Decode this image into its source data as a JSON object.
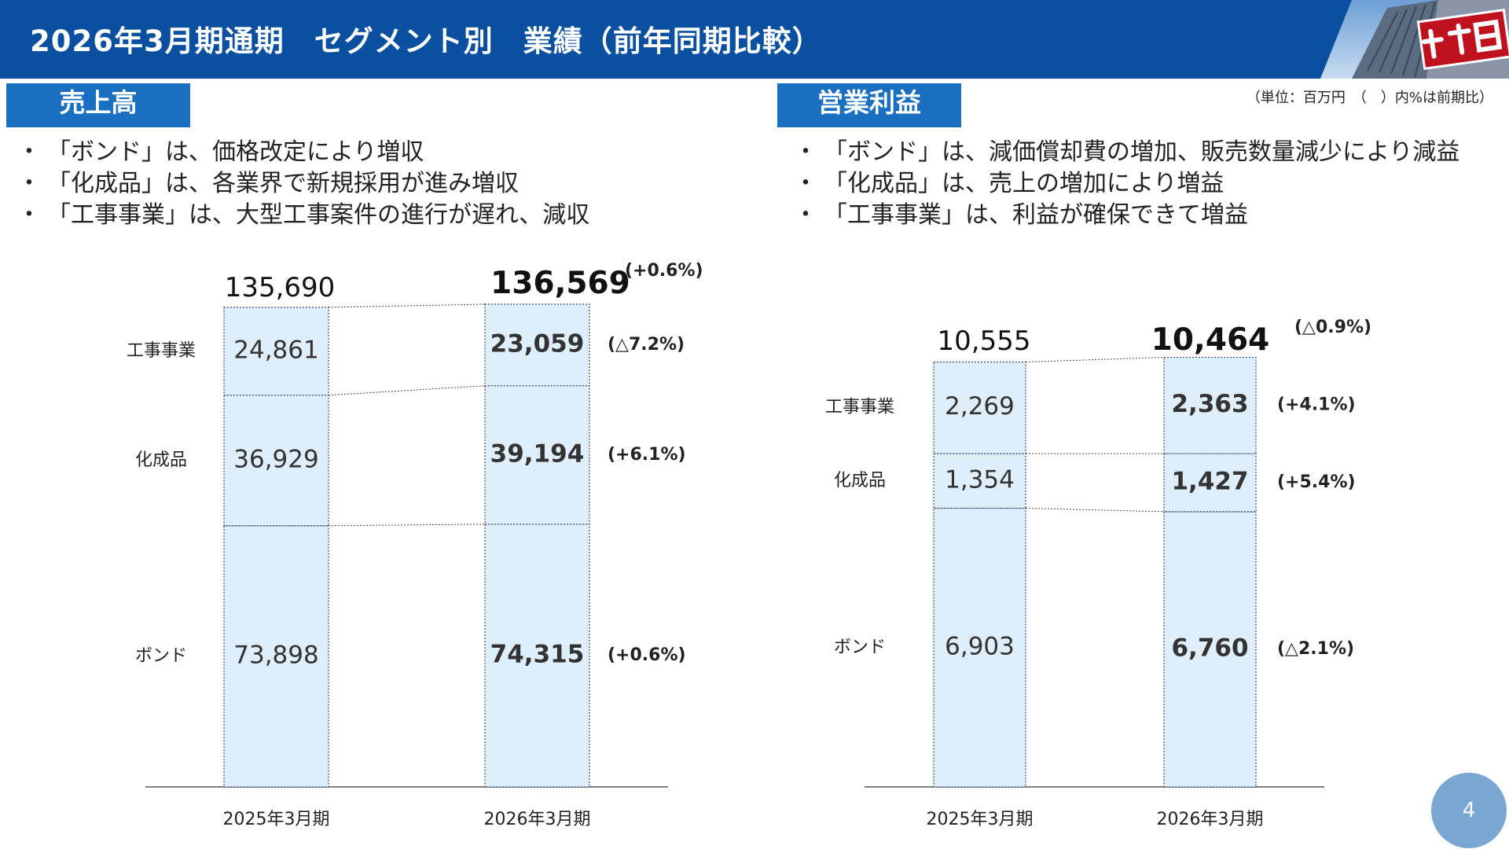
{
  "header": {
    "title": "2026年3月期通期　セグメント別　業績（前年同期比較）"
  },
  "sections": {
    "sales": {
      "label": "売上高",
      "bullets": [
        "「ボンド」は、価格改定により増収",
        "「化成品」は、各業界で新規採用が進み増収",
        "「工事事業」は、大型工事案件の進行が遅れ、減収"
      ]
    },
    "profit": {
      "label": "営業利益",
      "bullets": [
        "「ボンド」は、減価償却費の増加、販売数量減少により減益",
        "「化成品」は、売上の増加により増益",
        "「工事事業」は、利益が確保できて増益"
      ]
    }
  },
  "unit_note": "（単位：百万円　（　）内%は前期比）",
  "page_number": "4",
  "colors": {
    "header": "#0a4fa0",
    "tag": "#1a6fc0",
    "bar_fill": "#deeefa",
    "bar_stroke": "#3a4a66",
    "page_circle": "#7aa6d4"
  },
  "chart_data": [
    {
      "type": "bar",
      "stacked": true,
      "title": "売上高",
      "categories": [
        "2025年3月期",
        "2026年3月期"
      ],
      "series": [
        {
          "name": "ボンド",
          "values": [
            73898,
            74315
          ],
          "labels": [
            "73,898",
            "74,315"
          ],
          "change": "(+0.6%)"
        },
        {
          "name": "化成品",
          "values": [
            36929,
            39194
          ],
          "labels": [
            "36,929",
            "39,194"
          ],
          "change": "(+6.1%)"
        },
        {
          "name": "工事事業",
          "values": [
            24861,
            23059
          ],
          "labels": [
            "24,861",
            "23,059"
          ],
          "change": "(△7.2%)"
        }
      ],
      "totals": [
        135690,
        136569
      ],
      "total_labels": [
        "135,690",
        "136,569"
      ],
      "total_change": "(+0.6%)"
    },
    {
      "type": "bar",
      "stacked": true,
      "title": "営業利益",
      "categories": [
        "2025年3月期",
        "2026年3月期"
      ],
      "series": [
        {
          "name": "ボンド",
          "values": [
            6903,
            6760
          ],
          "labels": [
            "6,903",
            "6,760"
          ],
          "change": "(△2.1%)"
        },
        {
          "name": "化成品",
          "values": [
            1354,
            1427
          ],
          "labels": [
            "1,354",
            "1,427"
          ],
          "change": "(+5.4%)"
        },
        {
          "name": "工事事業",
          "values": [
            2269,
            2363
          ],
          "labels": [
            "2,269",
            "2,363"
          ],
          "change": "(+4.1%)"
        }
      ],
      "totals": [
        10555,
        10464
      ],
      "total_labels": [
        "10,555",
        "10,464"
      ],
      "total_change": "(△0.9%)"
    }
  ]
}
